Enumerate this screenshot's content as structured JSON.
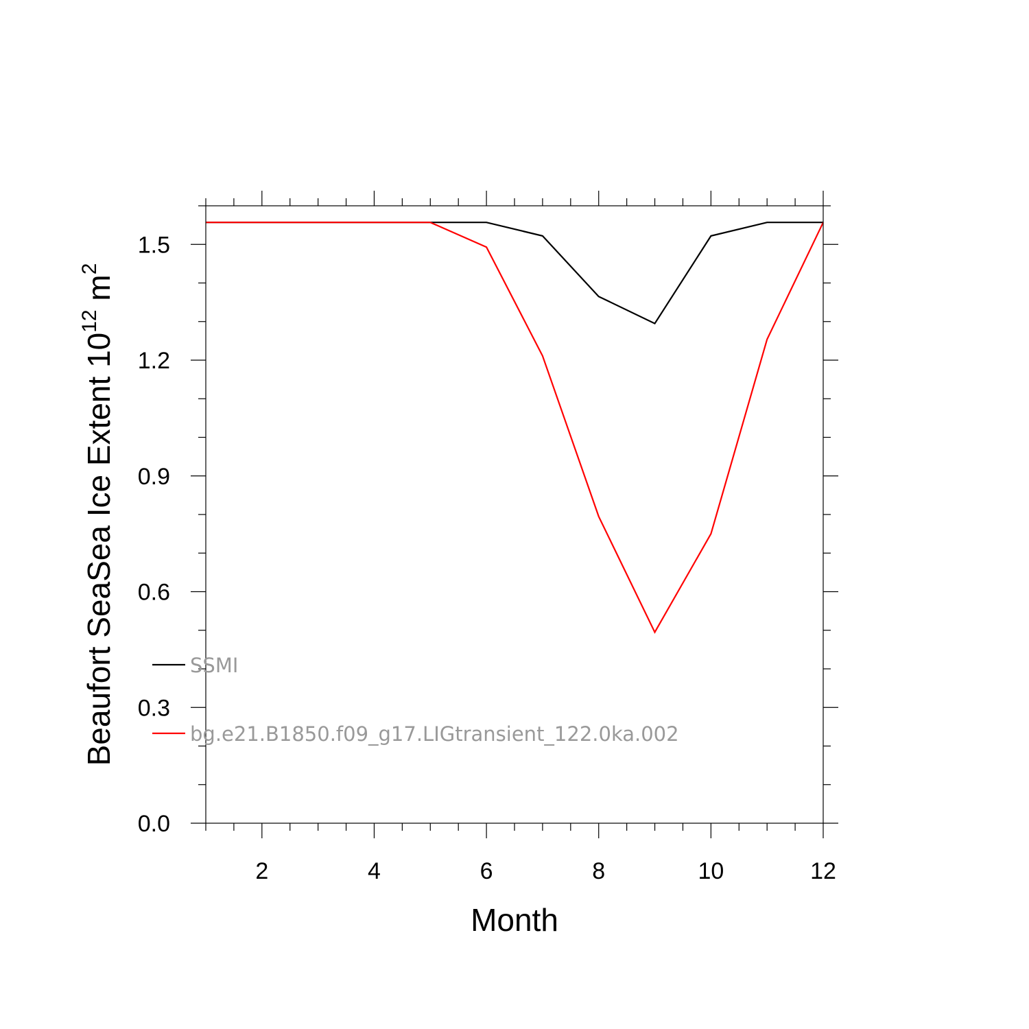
{
  "chart_data": {
    "type": "line",
    "xlabel": "Month",
    "ylabel": {
      "text": "Beaufort SeaSea Ice Extent 10",
      "superscript": "12",
      "unit": " m",
      "unit_superscript": "2"
    },
    "xlim": [
      1,
      12
    ],
    "ylim": [
      0,
      1.6
    ],
    "x_ticks": [
      2,
      4,
      6,
      8,
      10,
      12
    ],
    "x_tick_labels": [
      "2",
      "4",
      "6",
      "8",
      "10",
      "12"
    ],
    "y_ticks": [
      0,
      0.3,
      0.6,
      0.9,
      1.2,
      1.5
    ],
    "y_tick_labels": [
      "0.0",
      "0.3",
      "0.6",
      "0.9",
      "1.2",
      "1.5"
    ],
    "grid": false,
    "legend_position": "lower-left",
    "x": [
      1,
      2,
      3,
      4,
      5,
      6,
      7,
      8,
      9,
      10,
      11,
      12
    ],
    "series": [
      {
        "name": "SSMI",
        "color": "#000000",
        "values": [
          1.557,
          1.557,
          1.557,
          1.557,
          1.557,
          1.557,
          1.522,
          1.365,
          1.295,
          1.522,
          1.557,
          1.557
        ]
      },
      {
        "name": "bg.e21.B1850.f09_g17.LIGtransient_122.0ka.002",
        "color": "#ff0000",
        "values": [
          1.557,
          1.557,
          1.557,
          1.557,
          1.557,
          1.493,
          1.211,
          0.795,
          0.495,
          0.75,
          1.254,
          1.557
        ]
      }
    ]
  }
}
